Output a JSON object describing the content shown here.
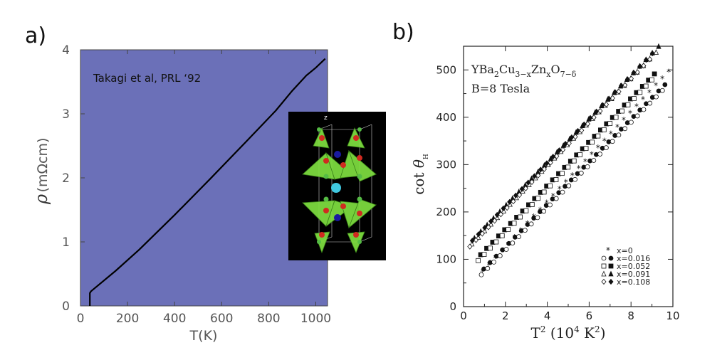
{
  "chart_data": [
    {
      "type": "line",
      "panel_label": "a)",
      "title": "",
      "annotation": "Takagi et al, PRL ‘92",
      "xlabel": "T(K)",
      "ylabel_symbol": "ρ",
      "ylabel_unit": "(mΩcm)",
      "xlim": [
        0,
        1050
      ],
      "ylim": [
        0,
        4
      ],
      "xticks": [
        0,
        200,
        400,
        600,
        800,
        1000
      ],
      "yticks": [
        0,
        1,
        2,
        3,
        4
      ],
      "background": "#6b70b8",
      "line_color": "#000000",
      "series": [
        {
          "name": "resistivity",
          "x": [
            40,
            40,
            45,
            150,
            250,
            400,
            550,
            700,
            830,
            900,
            960,
            1000,
            1040
          ],
          "y": [
            0.0,
            0.2,
            0.23,
            0.55,
            0.88,
            1.42,
            1.98,
            2.55,
            3.05,
            3.36,
            3.6,
            3.72,
            3.86
          ]
        }
      ],
      "inset": {
        "label": "z",
        "description": "YBa2Cu3O7 crystal structure",
        "colors": {
          "background": "#000000",
          "polyhedra": "#7fe040",
          "oxygen": "#d02a20",
          "barium": "#1a1aa0",
          "yttrium": "#40c8e0",
          "copper": "#55bb44"
        }
      }
    },
    {
      "type": "scatter",
      "panel_label": "b)",
      "title": "",
      "annotation_lines": [
        "YBa2Cu3-xZnxO7-δ",
        "B=8 Tesla"
      ],
      "xlabel": "T² (10⁴ K²)",
      "ylabel": "cot θH",
      "xlim": [
        0,
        10
      ],
      "ylim": [
        0,
        550
      ],
      "xticks": [
        0,
        2,
        4,
        6,
        8,
        10
      ],
      "yticks": [
        0,
        100,
        200,
        300,
        400,
        500
      ],
      "legend_position": "bottom-right",
      "series": [
        {
          "name": "x=0",
          "markers": [
            "star"
          ],
          "intercept": 33,
          "slope": 47.5,
          "x_range": [
            0.9,
            9.8
          ]
        },
        {
          "name": "x=0.016",
          "markers": [
            "open-circle",
            "filled-circle"
          ],
          "intercept": 32,
          "slope": 45,
          "x_range": [
            0.85,
            9.5
          ]
        },
        {
          "name": "x=0.052",
          "markers": [
            "open-square",
            "filled-square"
          ],
          "intercept": 68,
          "slope": 46,
          "x_range": [
            0.7,
            9.0
          ]
        },
        {
          "name": "x=0.091",
          "markers": [
            "open-triangle",
            "filled-triangle"
          ],
          "intercept": 117,
          "slope": 46,
          "x_range": [
            0.4,
            9.2
          ]
        },
        {
          "name": "x=0.108",
          "markers": [
            "open-diamond",
            "filled-diamond"
          ],
          "intercept": 116,
          "slope": 46,
          "x_range": [
            0.3,
            8.9
          ]
        }
      ]
    }
  ]
}
